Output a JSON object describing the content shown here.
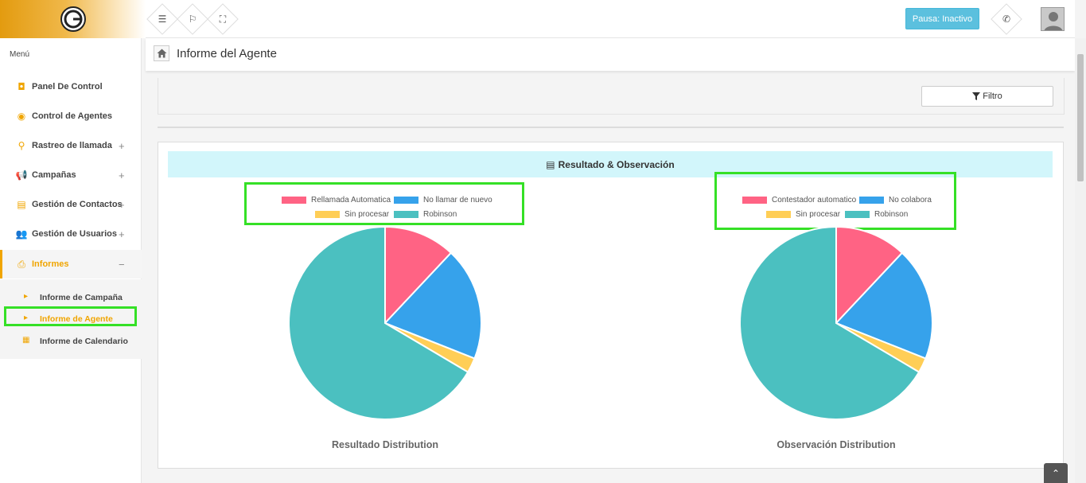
{
  "topbar": {
    "pause_label": "Pausa: Inactivo",
    "icons": [
      "menu-icon",
      "flag-icon",
      "expand-icon",
      "phone-icon"
    ]
  },
  "sidebar": {
    "menu_title": "Menú",
    "items": [
      {
        "label": "Panel De Control",
        "icon": "dashboard-icon",
        "expandable": false
      },
      {
        "label": "Control de Agentes",
        "icon": "eye-icon",
        "expandable": false
      },
      {
        "label": "Rastreo de llamada",
        "icon": "search-icon",
        "expandable": true
      },
      {
        "label": "Campañas",
        "icon": "megaphone-icon",
        "expandable": true
      },
      {
        "label": "Gestión de Contactos",
        "icon": "contact-book-icon",
        "expandable": true
      },
      {
        "label": "Gestión de Usuarios",
        "icon": "users-icon",
        "expandable": true
      },
      {
        "label": "Informes",
        "icon": "print-icon",
        "expandable": true,
        "expanded": true
      }
    ],
    "plus": "+",
    "minus": "−",
    "subitems": [
      {
        "label": "Informe de Campaña",
        "active": false
      },
      {
        "label": "Informe de Agente",
        "active": true
      },
      {
        "label": "Informe de Calendario",
        "active": false
      }
    ]
  },
  "header": {
    "title": "Informe del Agente"
  },
  "filter": {
    "button_label": "Filtro"
  },
  "report": {
    "title": "Resultado & Observación"
  },
  "colors": {
    "red": "#ff6384",
    "blue": "#36a2eb",
    "yellow": "#ffce56",
    "teal": "#4bc0c0",
    "accent": "#f0a500"
  },
  "chart_data": [
    {
      "type": "pie",
      "title": "Resultado Distribution",
      "labels": [
        "Rellamada Automatica",
        "No llamar de nuevo",
        "Sin procesar",
        "Robinson"
      ],
      "values": [
        12,
        19,
        2.5,
        66.5
      ],
      "colors": [
        "#ff6384",
        "#36a2eb",
        "#ffce56",
        "#4bc0c0"
      ],
      "legend": "top"
    },
    {
      "type": "pie",
      "title": "Observación Distribution",
      "labels": [
        "Contestador automatico",
        "No colabora",
        "Sin procesar",
        "Robinson"
      ],
      "values": [
        12,
        19,
        2.5,
        66.5
      ],
      "colors": [
        "#ff6384",
        "#36a2eb",
        "#ffce56",
        "#4bc0c0"
      ],
      "legend": "top"
    }
  ]
}
